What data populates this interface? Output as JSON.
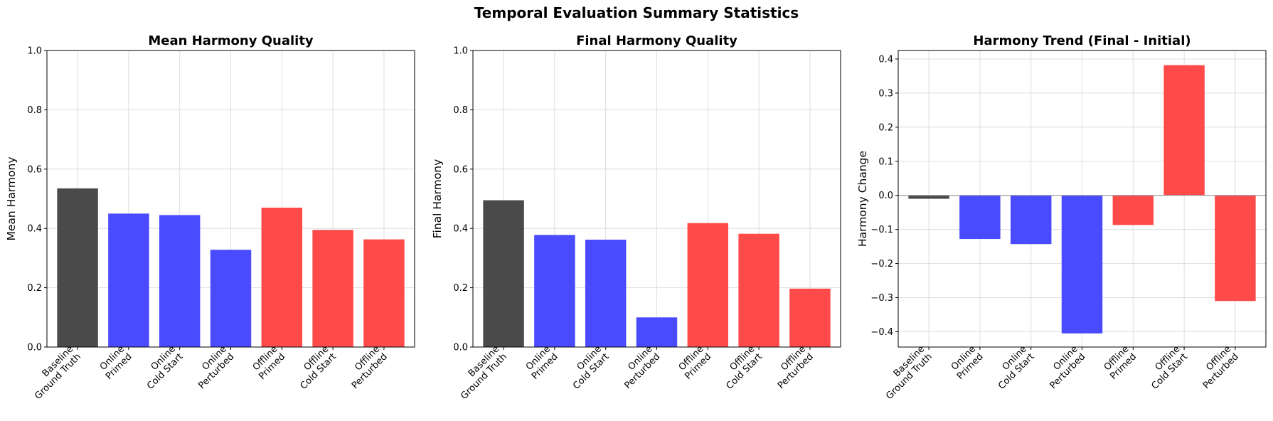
{
  "figure_title": "Temporal Evaluation Summary Statistics",
  "colors": {
    "baseline": "#4a4a4a",
    "online": "#4a4aff",
    "offline": "#ff4a4a",
    "grid": "#dddddd",
    "zero_line": "#999999"
  },
  "chart_data": [
    {
      "type": "bar",
      "title": "Mean Harmony Quality",
      "xlabel": "",
      "ylabel": "Mean Harmony",
      "ylim": [
        0,
        1.0
      ],
      "yticks": [
        "0.0",
        "0.2",
        "0.4",
        "0.6",
        "0.8",
        "1.0"
      ],
      "grid": true,
      "categories": [
        "Baseline\nGround Truth",
        "Online\nPrimed",
        "Online\nCold Start",
        "Online\nPerturbed",
        "Offline\nPrimed",
        "Offline\nCold Start",
        "Offline\nPerturbed"
      ],
      "values": [
        0.535,
        0.45,
        0.445,
        0.328,
        0.47,
        0.395,
        0.363
      ],
      "bar_groups": [
        "baseline",
        "online",
        "online",
        "online",
        "offline",
        "offline",
        "offline"
      ]
    },
    {
      "type": "bar",
      "title": "Final Harmony Quality",
      "xlabel": "",
      "ylabel": "Final Harmony",
      "ylim": [
        0,
        1.0
      ],
      "yticks": [
        "0.0",
        "0.2",
        "0.4",
        "0.6",
        "0.8",
        "1.0"
      ],
      "grid": true,
      "categories": [
        "Baseline\nGround Truth",
        "Online\nPrimed",
        "Online\nCold Start",
        "Online\nPerturbed",
        "Offline\nPrimed",
        "Offline\nCold Start",
        "Offline\nPerturbed"
      ],
      "values": [
        0.495,
        0.378,
        0.362,
        0.1,
        0.418,
        0.382,
        0.197
      ],
      "bar_groups": [
        "baseline",
        "online",
        "online",
        "online",
        "offline",
        "offline",
        "offline"
      ]
    },
    {
      "type": "bar",
      "title": "Harmony Trend (Final - Initial)",
      "xlabel": "",
      "ylabel": "Harmony Change",
      "ylim": [
        -0.445,
        0.425
      ],
      "yticks": [
        "−0.4",
        "−0.3",
        "−0.2",
        "−0.1",
        "0.0",
        "0.1",
        "0.2",
        "0.3",
        "0.4"
      ],
      "grid": true,
      "zero_line": true,
      "categories": [
        "Baseline\nGround Truth",
        "Online\nPrimed",
        "Online\nCold Start",
        "Online\nPerturbed",
        "Offline\nPrimed",
        "Offline\nCold Start",
        "Offline\nPerturbed"
      ],
      "values": [
        -0.01,
        -0.128,
        -0.143,
        -0.405,
        -0.087,
        0.382,
        -0.31
      ],
      "bar_groups": [
        "baseline",
        "online",
        "online",
        "online",
        "offline",
        "offline",
        "offline"
      ]
    }
  ]
}
